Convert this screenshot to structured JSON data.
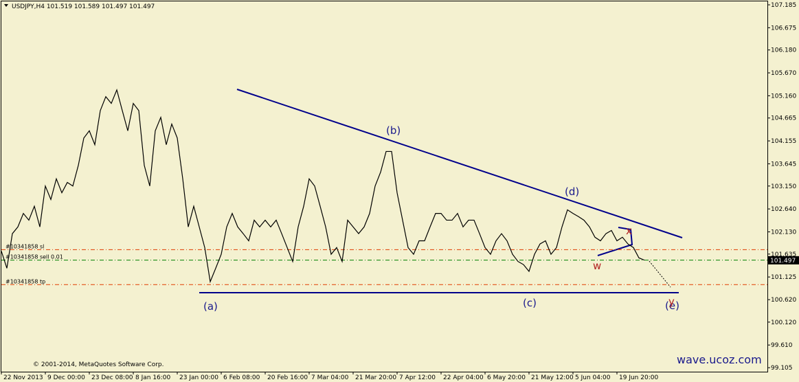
{
  "chart_data": {
    "type": "line",
    "title": "USDJPY,H4  101.519 101.589 101.497 101.497",
    "copyright": "© 2001-2014, MetaQuotes Software Corp.",
    "watermark": "wave.ucoz.com",
    "color": "#000000",
    "values": [
      101.7,
      101.32,
      102.09,
      102.24,
      102.54,
      102.39,
      102.7,
      102.24,
      103.15,
      102.85,
      103.31,
      103.0,
      103.23,
      103.15,
      103.61,
      104.22,
      104.38,
      104.07,
      104.83,
      105.14,
      104.99,
      105.29,
      104.83,
      104.38,
      104.99,
      104.83,
      103.61,
      103.15,
      104.38,
      104.68,
      104.07,
      104.53,
      104.22,
      103.31,
      102.24,
      102.7,
      102.24,
      101.78,
      101.02,
      101.32,
      101.63,
      102.24,
      102.54,
      102.24,
      102.09,
      101.93,
      102.39,
      102.24,
      102.39,
      102.24,
      102.39,
      102.09,
      101.78,
      101.47,
      102.24,
      102.7,
      103.31,
      103.15,
      102.7,
      102.24,
      101.63,
      101.78,
      101.47,
      102.39,
      102.24,
      102.09,
      102.24,
      102.54,
      103.15,
      103.46,
      103.92,
      103.92,
      103.0,
      102.39,
      101.78,
      101.63,
      101.93,
      101.93,
      102.24,
      102.54,
      102.54,
      102.39,
      102.39,
      102.54,
      102.24,
      102.39,
      102.39,
      102.09,
      101.78,
      101.63,
      101.93,
      102.09,
      101.93,
      101.63,
      101.47,
      101.4,
      101.25,
      101.63,
      101.86,
      101.93,
      101.63,
      101.78,
      102.24,
      102.62,
      102.54,
      102.47,
      102.39,
      102.24,
      102.01,
      101.93,
      102.09,
      102.16,
      101.93,
      102.01,
      101.86,
      101.78,
      101.55,
      101.5
    ],
    "xticks": [
      {
        "value": 0,
        "label": "22 Nov 2013"
      },
      {
        "value": 8,
        "label": "9 Dec 00:00"
      },
      {
        "value": 16,
        "label": "23 Dec 08:00"
      },
      {
        "value": 24,
        "label": "8 Jan 16:00"
      },
      {
        "value": 32,
        "label": "23 Jan 00:00"
      },
      {
        "value": 40,
        "label": "6 Feb 08:00"
      },
      {
        "value": 48,
        "label": "20 Feb 16:00"
      },
      {
        "value": 56,
        "label": "7 Mar 04:00"
      },
      {
        "value": 64,
        "label": "21 Mar 20:00"
      },
      {
        "value": 72,
        "label": "7 Apr 12:00"
      },
      {
        "value": 80,
        "label": "22 Apr 04:00"
      },
      {
        "value": 88,
        "label": "6 May 20:00"
      },
      {
        "value": 96,
        "label": "21 May 12:00"
      },
      {
        "value": 104,
        "label": "5 Jun 04:00"
      },
      {
        "value": 112,
        "label": "19 Jun 20:00"
      }
    ],
    "ylim": [
      99.016,
      107.277
    ],
    "yticks": [
      107.185,
      106.675,
      {
        "value": 106.18,
        "label": "106.180"
      },
      {
        "value": 105.67,
        "label": "105.670"
      },
      {
        "value": 105.16,
        "label": "105.160"
      },
      104.665,
      104.155,
      103.645,
      {
        "value": 103.15,
        "label": "103.150"
      },
      {
        "value": 102.64,
        "label": "102.640"
      },
      {
        "value": 102.13,
        "label": "102.130"
      },
      101.635,
      101.125,
      {
        "value": 100.62,
        "label": "100.620"
      },
      {
        "value": 100.12,
        "label": "100.120"
      },
      {
        "value": 99.61,
        "label": "99.610"
      },
      99.105
    ],
    "last_price": 101.497,
    "levels": [
      {
        "label": "#10341858 sl",
        "value": 101.733,
        "color": "#e03c00"
      },
      {
        "label": "#10341858 sell 0.01",
        "value": 101.5,
        "color": "#008000"
      },
      {
        "label": "#10341858 tp",
        "value": 100.955,
        "color": "#e03c00"
      }
    ],
    "annotations": [
      "(a)",
      "(b)",
      "(c)",
      "(d)",
      "(e)",
      "w",
      "x",
      "y"
    ]
  }
}
